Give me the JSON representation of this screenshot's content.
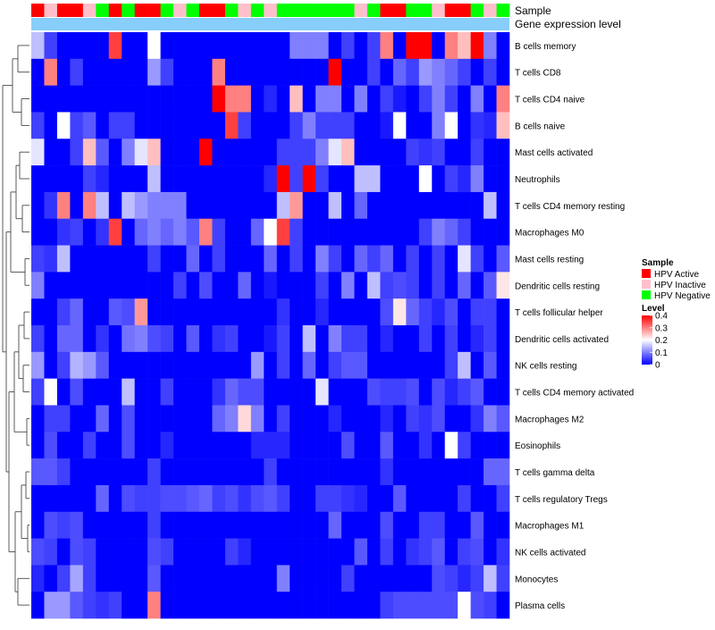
{
  "chart_data": {
    "type": "heatmap",
    "annotation_labels": [
      "Sample",
      "Gene expression level"
    ],
    "sample_groups": [
      "HPV Active",
      "HPV Inactive",
      "HPV Active",
      "HPV Active",
      "HPV Inactive",
      "HPV Negative",
      "HPV Active",
      "HPV Negative",
      "HPV Active",
      "HPV Active",
      "HPV Negative",
      "HPV Inactive",
      "HPV Negative",
      "HPV Active",
      "HPV Active",
      "HPV Negative",
      "HPV Inactive",
      "HPV Negative",
      "HPV Inactive",
      "HPV Negative",
      "HPV Negative",
      "HPV Negative",
      "HPV Negative",
      "HPV Negative",
      "HPV Negative",
      "HPV Inactive",
      "HPV Negative",
      "HPV Active",
      "HPV Active",
      "HPV Negative",
      "HPV Negative",
      "HPV Inactive",
      "HPV Active",
      "HPV Active",
      "HPV Negative",
      "HPV Inactive",
      "HPV Negative"
    ],
    "rows": [
      "B cells memory",
      "T cells CD8",
      "T cells CD4 naive",
      "B cells naive",
      "Mast cells activated",
      "Neutrophils",
      "T cells CD4 memory resting",
      "Macrophages M0",
      "Mast cells resting",
      "Dendritic cells resting",
      "T cells follicular helper",
      "Dendritic cells activated",
      "NK cells resting",
      "T cells CD4 memory activated",
      "Macrophages M2",
      "Eosinophils",
      "T cells gamma delta",
      "T cells regulatory  Tregs",
      "Macrophages M1",
      "NK cells activated",
      "Monocytes",
      "Plasma cells"
    ],
    "values": [
      [
        0.15,
        0.05,
        0,
        0,
        0,
        0,
        0.35,
        0,
        0,
        0.2,
        0,
        0,
        0,
        0,
        0,
        0,
        0,
        0,
        0,
        0,
        0.1,
        0.1,
        0.1,
        0,
        0.05,
        0,
        0.05,
        0.3,
        0,
        0.4,
        0.4,
        0,
        0.3,
        0.25,
        0.4,
        0.1,
        0
      ],
      [
        0,
        0.3,
        0,
        0.05,
        0,
        0,
        0,
        0,
        0,
        0.12,
        0.05,
        0,
        0,
        0,
        0.3,
        0,
        0,
        0,
        0,
        0,
        0,
        0,
        0,
        0.4,
        0,
        0,
        0.05,
        0,
        0.08,
        0.05,
        0.12,
        0.1,
        0.08,
        0.05,
        0,
        0.05,
        0
      ],
      [
        0,
        0,
        0,
        0,
        0,
        0,
        0,
        0,
        0,
        0,
        0,
        0,
        0,
        0,
        0.4,
        0.3,
        0.3,
        0,
        0.03,
        0,
        0.25,
        0,
        0.1,
        0.1,
        0,
        0.1,
        0,
        0.05,
        0.02,
        0,
        0.05,
        0.1,
        0.05,
        0,
        0.1,
        0,
        0.3
      ],
      [
        0.05,
        0,
        0.2,
        0.05,
        0.07,
        0,
        0.05,
        0.05,
        0,
        0,
        0,
        0,
        0,
        0,
        0,
        0.35,
        0.05,
        0,
        0,
        0,
        0.05,
        0.1,
        0.05,
        0.05,
        0.05,
        0,
        0,
        0.02,
        0.2,
        0,
        0,
        0.1,
        0.2,
        0,
        0.04,
        0.03,
        0.25
      ],
      [
        0.18,
        0,
        0,
        0.05,
        0.25,
        0.07,
        0,
        0.1,
        0.18,
        0.25,
        0,
        0,
        0,
        0.4,
        0,
        0,
        0,
        0,
        0,
        0.05,
        0.05,
        0.05,
        0.1,
        0.18,
        0.25,
        0,
        0,
        0,
        0,
        0.05,
        0.04,
        0.05,
        0,
        0,
        0.05,
        0,
        0
      ],
      [
        0,
        0,
        0,
        0,
        0.05,
        0.03,
        0,
        0,
        0,
        0.15,
        0,
        0,
        0,
        0,
        0,
        0,
        0,
        0,
        0.03,
        0.4,
        0.05,
        0.4,
        0.05,
        0,
        0,
        0.15,
        0.15,
        0,
        0,
        0,
        0.2,
        0,
        0.05,
        0.03,
        0.1,
        0,
        0
      ],
      [
        0,
        0.04,
        0.3,
        0,
        0.3,
        0.15,
        0,
        0.15,
        0.12,
        0.1,
        0.1,
        0.1,
        0,
        0,
        0,
        0,
        0,
        0,
        0,
        0.15,
        0.28,
        0,
        0,
        0.15,
        0,
        0.08,
        0,
        0,
        0,
        0,
        0,
        0,
        0,
        0,
        0,
        0.15,
        0
      ],
      [
        0,
        0,
        0.04,
        0.05,
        0,
        0.04,
        0.35,
        0,
        0.08,
        0.1,
        0.08,
        0.1,
        0.07,
        0.3,
        0.05,
        0,
        0,
        0.08,
        0.2,
        0.35,
        0.05,
        0,
        0,
        0,
        0,
        0,
        0,
        0,
        0,
        0,
        0.05,
        0.1,
        0.08,
        0.05,
        0,
        0,
        0
      ],
      [
        0.05,
        0.04,
        0.15,
        0,
        0,
        0,
        0,
        0,
        0,
        0.05,
        0,
        0,
        0.08,
        0,
        0.05,
        0,
        0,
        0,
        0.08,
        0,
        0.05,
        0,
        0.1,
        0.05,
        0,
        0.08,
        0.05,
        0.08,
        0,
        0.05,
        0,
        0.05,
        0,
        0.18,
        0.05,
        0,
        0.07
      ],
      [
        0.1,
        0,
        0,
        0,
        0,
        0,
        0,
        0,
        0,
        0,
        0,
        0.05,
        0,
        0.06,
        0,
        0,
        0.08,
        0,
        0.02,
        0,
        0,
        0,
        0.05,
        0,
        0.1,
        0,
        0.15,
        0.05,
        0.06,
        0.05,
        0,
        0.05,
        0,
        0.08,
        0,
        0.07,
        0.22
      ],
      [
        0,
        0,
        0.05,
        0.08,
        0,
        0,
        0.07,
        0.06,
        0.28,
        0,
        0,
        0,
        0,
        0,
        0,
        0,
        0,
        0,
        0,
        0.04,
        0,
        0,
        0.03,
        0,
        0,
        0,
        0,
        0.06,
        0.22,
        0.08,
        0.05,
        0.03,
        0.06,
        0,
        0.05,
        0.05,
        0
      ],
      [
        0.05,
        0,
        0.08,
        0.08,
        0,
        0.04,
        0,
        0.09,
        0.1,
        0.06,
        0.05,
        0,
        0.07,
        0,
        0.04,
        0.05,
        0,
        0,
        0.02,
        0.05,
        0,
        0.15,
        0,
        0.1,
        0.05,
        0.05,
        0,
        0.03,
        0,
        0,
        0.05,
        0,
        0.05,
        0,
        0.03,
        0.05,
        0
      ],
      [
        0.12,
        0,
        0.05,
        0.14,
        0.12,
        0.07,
        0,
        0,
        0,
        0,
        0,
        0,
        0,
        0,
        0,
        0,
        0,
        0.12,
        0,
        0.05,
        0,
        0.08,
        0,
        0.05,
        0.07,
        0.07,
        0,
        0,
        0,
        0,
        0,
        0,
        0.05,
        0.15,
        0,
        0.07,
        0
      ],
      [
        0.05,
        0.2,
        0,
        0.06,
        0,
        0,
        0,
        0.15,
        0,
        0,
        0.05,
        0,
        0,
        0,
        0.04,
        0.08,
        0.06,
        0.06,
        0,
        0,
        0,
        0,
        0.18,
        0,
        0,
        0,
        0.06,
        0.05,
        0.05,
        0.06,
        0,
        0.06,
        0.03,
        0.05,
        0.07,
        0,
        0
      ],
      [
        0,
        0.05,
        0.05,
        0,
        0,
        0.08,
        0,
        0.06,
        0,
        0,
        0,
        0,
        0,
        0,
        0.08,
        0.1,
        0.23,
        0.1,
        0,
        0.05,
        0,
        0,
        0,
        0.03,
        0,
        0,
        0,
        0.03,
        0,
        0.05,
        0.04,
        0.06,
        0,
        0,
        0.04,
        0.1,
        0.07
      ],
      [
        0,
        0.06,
        0,
        0,
        0.05,
        0,
        0,
        0.06,
        0,
        0,
        0.03,
        0,
        0,
        0,
        0,
        0,
        0,
        0.03,
        0.03,
        0.03,
        0,
        0,
        0,
        0,
        0.06,
        0,
        0,
        0.07,
        0,
        0,
        0.04,
        0,
        0.2,
        0.05,
        0,
        0,
        0
      ],
      [
        0.07,
        0.07,
        0.05,
        0,
        0,
        0,
        0,
        0,
        0,
        0.05,
        0,
        0,
        0,
        0,
        0,
        0,
        0,
        0,
        0.05,
        0,
        0,
        0,
        0,
        0,
        0,
        0,
        0,
        0.04,
        0,
        0,
        0,
        0,
        0,
        0,
        0,
        0.08,
        0.08
      ],
      [
        0,
        0,
        0,
        0,
        0,
        0.08,
        0,
        0.06,
        0.05,
        0.05,
        0.06,
        0.06,
        0.07,
        0.08,
        0.05,
        0.06,
        0.04,
        0.06,
        0.07,
        0.05,
        0,
        0,
        0.05,
        0.05,
        0.04,
        0.03,
        0,
        0,
        0.07,
        0,
        0,
        0,
        0,
        0.05,
        0,
        0,
        0.05
      ],
      [
        0,
        0.06,
        0.05,
        0.06,
        0,
        0,
        0,
        0,
        0,
        0.05,
        0,
        0,
        0,
        0,
        0,
        0,
        0,
        0,
        0,
        0,
        0,
        0,
        0,
        0.08,
        0,
        0,
        0,
        0.06,
        0,
        0,
        0.05,
        0.05,
        0,
        0,
        0.07,
        0,
        0
      ],
      [
        0.06,
        0.05,
        0,
        0.06,
        0.05,
        0,
        0,
        0,
        0,
        0.06,
        0.05,
        0,
        0,
        0,
        0,
        0.05,
        0.03,
        0,
        0,
        0,
        0,
        0,
        0,
        0,
        0,
        0.07,
        0,
        0.05,
        0,
        0.04,
        0.05,
        0.07,
        0,
        0.05,
        0.06,
        0,
        0.04
      ],
      [
        0.03,
        0,
        0.05,
        0.13,
        0.05,
        0,
        0,
        0,
        0,
        0.07,
        0,
        0,
        0,
        0,
        0,
        0,
        0,
        0,
        0,
        0.1,
        0,
        0,
        0,
        0,
        0.05,
        0,
        0,
        0,
        0,
        0,
        0,
        0.06,
        0.05,
        0.03,
        0.05,
        0.15,
        0.05
      ],
      [
        0,
        0.12,
        0.12,
        0.07,
        0.05,
        0.04,
        0.05,
        0,
        0,
        0.3,
        0,
        0,
        0,
        0,
        0,
        0,
        0,
        0,
        0,
        0,
        0,
        0,
        0,
        0,
        0,
        0,
        0,
        0.05,
        0.06,
        0.06,
        0.06,
        0.06,
        0.06,
        0.2,
        0.06,
        0.05,
        0
      ]
    ],
    "legend": {
      "sample_title": "Sample",
      "sample_entries": [
        {
          "label": "HPV Active",
          "color": "#ff0000"
        },
        {
          "label": "HPV Inactive",
          "color": "#ffc0cb"
        },
        {
          "label": "HPV Negative",
          "color": "#00ff00"
        }
      ],
      "level_title": "Level",
      "level_ticks": [
        "0.4",
        "0.3",
        "0.2",
        "0.1",
        "0"
      ],
      "level_range": [
        0,
        0.4
      ],
      "placement": "right"
    },
    "colors": {
      "low": "#0000ff",
      "mid": "#ffffff",
      "high": "#ff0000",
      "expression_bar": "#87cefa"
    }
  }
}
